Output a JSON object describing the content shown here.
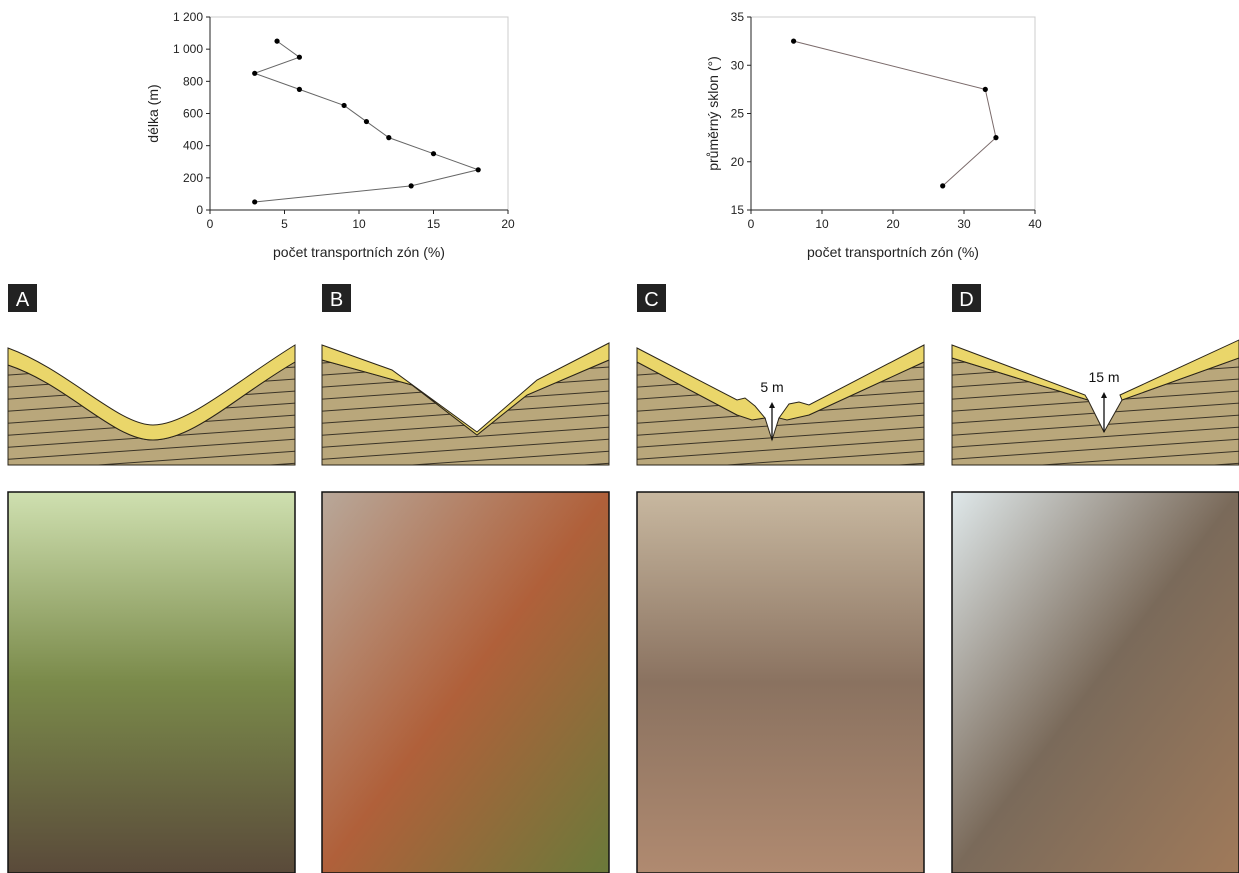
{
  "chart_data": [
    {
      "type": "line",
      "x": [
        3,
        13.5,
        18,
        15,
        12,
        10.5,
        9,
        6,
        3,
        6,
        4.5
      ],
      "values": [
        50,
        150,
        250,
        350,
        450,
        550,
        650,
        750,
        850,
        950,
        1050
      ],
      "xlabel": "počet transportních zón (%)",
      "ylabel": "délka (m)",
      "xlim": [
        0,
        20
      ],
      "xticks": [
        0,
        5,
        10,
        15,
        20
      ],
      "ylim": [
        0,
        1200
      ],
      "yticks": [
        0,
        200,
        400,
        600,
        800,
        {
          "value": 1000,
          "label": "1 000"
        },
        {
          "value": 1200,
          "label": "1 200"
        }
      ],
      "color": "#666666"
    },
    {
      "type": "line",
      "x": [
        6,
        33,
        34.5,
        27
      ],
      "values": [
        32.5,
        27.5,
        22.5,
        17.5
      ],
      "xlabel": "počet transportních zón (%)",
      "ylabel": "průměrný sklon (°)",
      "xlim": [
        0,
        40
      ],
      "xticks": [
        0,
        10,
        20,
        30,
        40
      ],
      "ylim": [
        15,
        35
      ],
      "yticks": [
        15,
        20,
        25,
        30,
        35
      ],
      "color": "#7a6a6a"
    }
  ],
  "panels": [
    {
      "label": "A"
    },
    {
      "label": "B"
    },
    {
      "label": "C",
      "annotation": "5 m"
    },
    {
      "label": "D",
      "annotation": "15 m"
    }
  ]
}
